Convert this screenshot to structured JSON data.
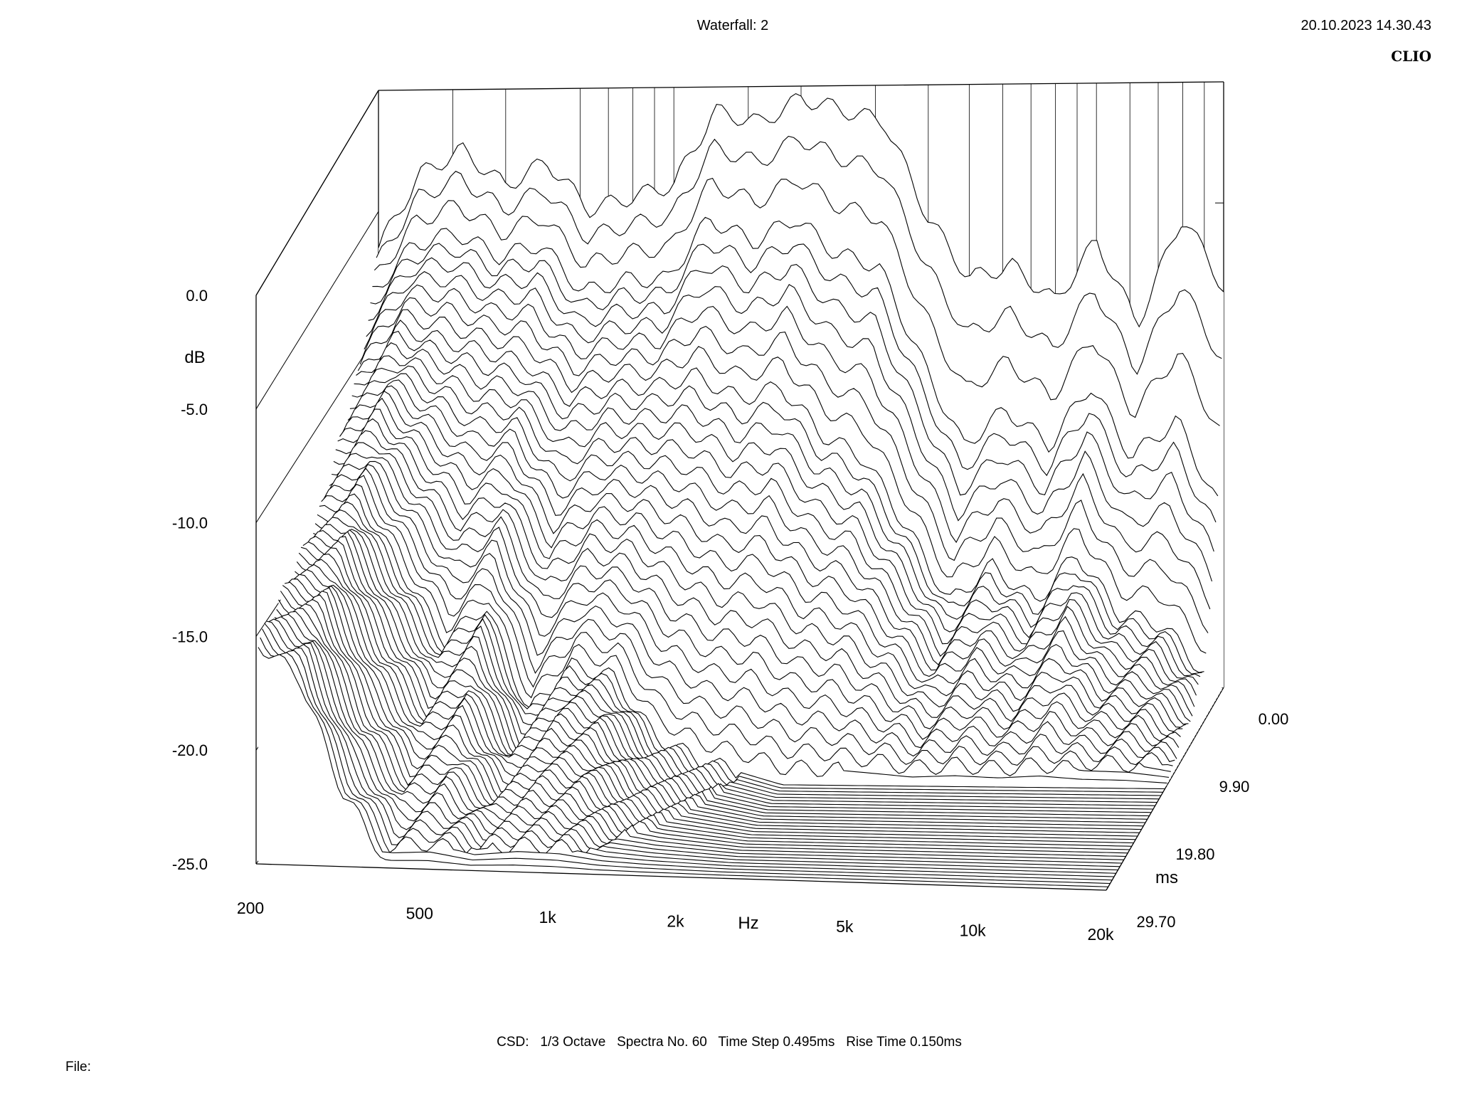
{
  "header": {
    "title": "Waterfall: 2",
    "datetime": "20.10.2023 14.30.43",
    "brand": "CLIO"
  },
  "footer": {
    "settings": "CSD:   1/3 Octave   Spectra No. 60   Time Step 0.495ms   Rise Time 0.150ms",
    "file_label": "File:"
  },
  "chart_data": {
    "type": "waterfall",
    "title": "Waterfall: 2",
    "xlabel": "Hz",
    "ylabel": "dB",
    "zlabel": "ms",
    "x_scale": "log",
    "xlim": [
      200,
      20000
    ],
    "ylim": [
      -25,
      0
    ],
    "zlim": [
      0,
      29.7
    ],
    "x_ticks": [
      200,
      500,
      1000,
      2000,
      5000,
      10000,
      20000
    ],
    "x_tick_labels": [
      "200",
      "500",
      "1k",
      "2k",
      "5k",
      "10k",
      "20k"
    ],
    "y_ticks": [
      0,
      -5,
      -10,
      -15,
      -20,
      -25
    ],
    "y_tick_labels": [
      "0.0",
      "-5.0",
      "-10.0",
      "-15.0",
      "-20.0",
      "-25.0"
    ],
    "z_ticks": [
      0,
      9.9,
      19.8,
      29.7
    ],
    "z_tick_labels": [
      "0.00",
      "9.90",
      "19.80",
      "29.70"
    ],
    "spectra_count": 60,
    "time_step_ms": 0.495,
    "rise_time_ms": 0.15,
    "smoothing": "1/3 Octave",
    "series": [
      {
        "t_ms": 0.0,
        "freq_hz": [
          200,
          250,
          315,
          400,
          500,
          630,
          800,
          1000,
          1250,
          1600,
          2000,
          2500,
          3150,
          4000,
          5000,
          6300,
          8000,
          10000,
          12500,
          16000,
          20000
        ],
        "db": [
          -6.5,
          -3.5,
          -2.5,
          -4.0,
          -3.0,
          -5.0,
          -4.5,
          -4.0,
          -1.0,
          -1.5,
          -0.5,
          -1.0,
          -1.5,
          -5.5,
          -8.0,
          -7.5,
          -9.0,
          -6.5,
          -10.0,
          -5.5,
          -8.5
        ]
      },
      {
        "t_ms": 1.485,
        "freq_hz": [
          200,
          250,
          315,
          400,
          500,
          630,
          800,
          1000,
          1250,
          1600,
          2000,
          2500,
          3150,
          4000,
          5000,
          6300,
          8000,
          10000,
          12500,
          16000,
          20000
        ],
        "db": [
          -8.0,
          -6.0,
          -5.5,
          -6.5,
          -6.0,
          -8.0,
          -7.5,
          -7.5,
          -5.0,
          -6.0,
          -5.0,
          -6.5,
          -7.0,
          -11.0,
          -14.5,
          -13.0,
          -14.5,
          -12.0,
          -15.0,
          -13.5,
          -17.0
        ]
      },
      {
        "t_ms": 4.95,
        "freq_hz": [
          200,
          250,
          315,
          400,
          500,
          630,
          800,
          1000,
          1250,
          1600,
          2000,
          2500,
          3150,
          4000,
          5000,
          6300,
          8000,
          10000,
          12500,
          16000,
          20000
        ],
        "db": [
          -10.5,
          -8.5,
          -9.0,
          -9.5,
          -10.0,
          -11.5,
          -11.0,
          -11.0,
          -10.5,
          -11.5,
          -11.0,
          -13.0,
          -14.0,
          -17.0,
          -20.0,
          -18.5,
          -20.0,
          -18.0,
          -20.5,
          -21.0,
          -23.0
        ]
      },
      {
        "t_ms": 14.85,
        "freq_hz": [
          200,
          250,
          315,
          400,
          500,
          630,
          800,
          1000,
          1250,
          1600,
          2000,
          2500,
          3150,
          4000,
          5000,
          6300,
          8000,
          10000,
          12500,
          16000,
          20000
        ],
        "db": [
          -14.0,
          -13.0,
          -16.0,
          -19.0,
          -17.5,
          -22.0,
          -20.0,
          -20.5,
          -23.0,
          -24.0,
          -24.5,
          -25.0,
          -25.0,
          -25.0,
          -25.0,
          -25.0,
          -25.0,
          -25.0,
          -25.0,
          -25.0,
          -25.0
        ]
      },
      {
        "t_ms": 29.7,
        "freq_hz": [
          200,
          250,
          315,
          400,
          500,
          630,
          800,
          1000,
          1250,
          1600,
          2000,
          2500,
          3150,
          4000,
          5000,
          6300,
          8000,
          10000,
          12500,
          16000,
          20000
        ],
        "db": [
          -15.5,
          -17.0,
          -22.0,
          -25.0,
          -25.0,
          -25.0,
          -25.0,
          -25.0,
          -25.0,
          -25.0,
          -25.0,
          -25.0,
          -25.0,
          -25.0,
          -25.0,
          -25.0,
          -25.0,
          -25.0,
          -25.0,
          -25.0,
          -25.0
        ]
      }
    ]
  }
}
